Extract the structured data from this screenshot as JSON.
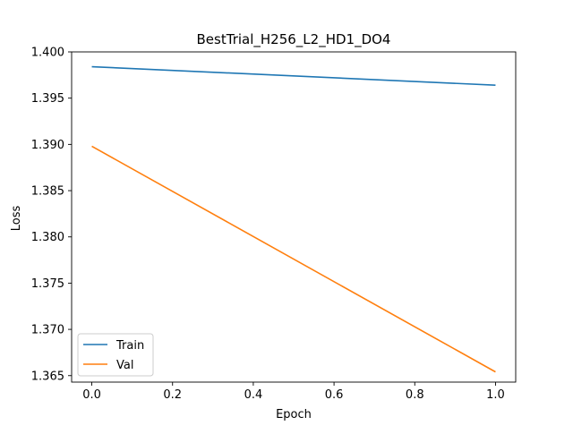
{
  "chart_data": {
    "type": "line",
    "title": "BestTrial_H256_L2_HD1_DO4",
    "xlabel": "Epoch",
    "ylabel": "Loss",
    "xlim": [
      -0.05,
      1.05
    ],
    "ylim": [
      1.3643,
      1.4
    ],
    "x_ticks": [
      0.0,
      0.2,
      0.4,
      0.6,
      0.8,
      1.0
    ],
    "x_tick_labels": [
      "0.0",
      "0.2",
      "0.4",
      "0.6",
      "0.8",
      "1.0"
    ],
    "y_ticks": [
      1.365,
      1.37,
      1.375,
      1.38,
      1.385,
      1.39,
      1.395,
      1.4
    ],
    "y_tick_labels": [
      "1.365",
      "1.370",
      "1.375",
      "1.380",
      "1.385",
      "1.390",
      "1.395",
      "1.400"
    ],
    "grid": false,
    "legend_position": "lower-left",
    "series": [
      {
        "name": "Train",
        "color": "#1f77b4",
        "x": [
          0.0,
          1.0
        ],
        "y": [
          1.3984,
          1.3964
        ]
      },
      {
        "name": "Val",
        "color": "#ff7f0e",
        "x": [
          0.0,
          1.0
        ],
        "y": [
          1.3898,
          1.3654
        ]
      }
    ]
  }
}
